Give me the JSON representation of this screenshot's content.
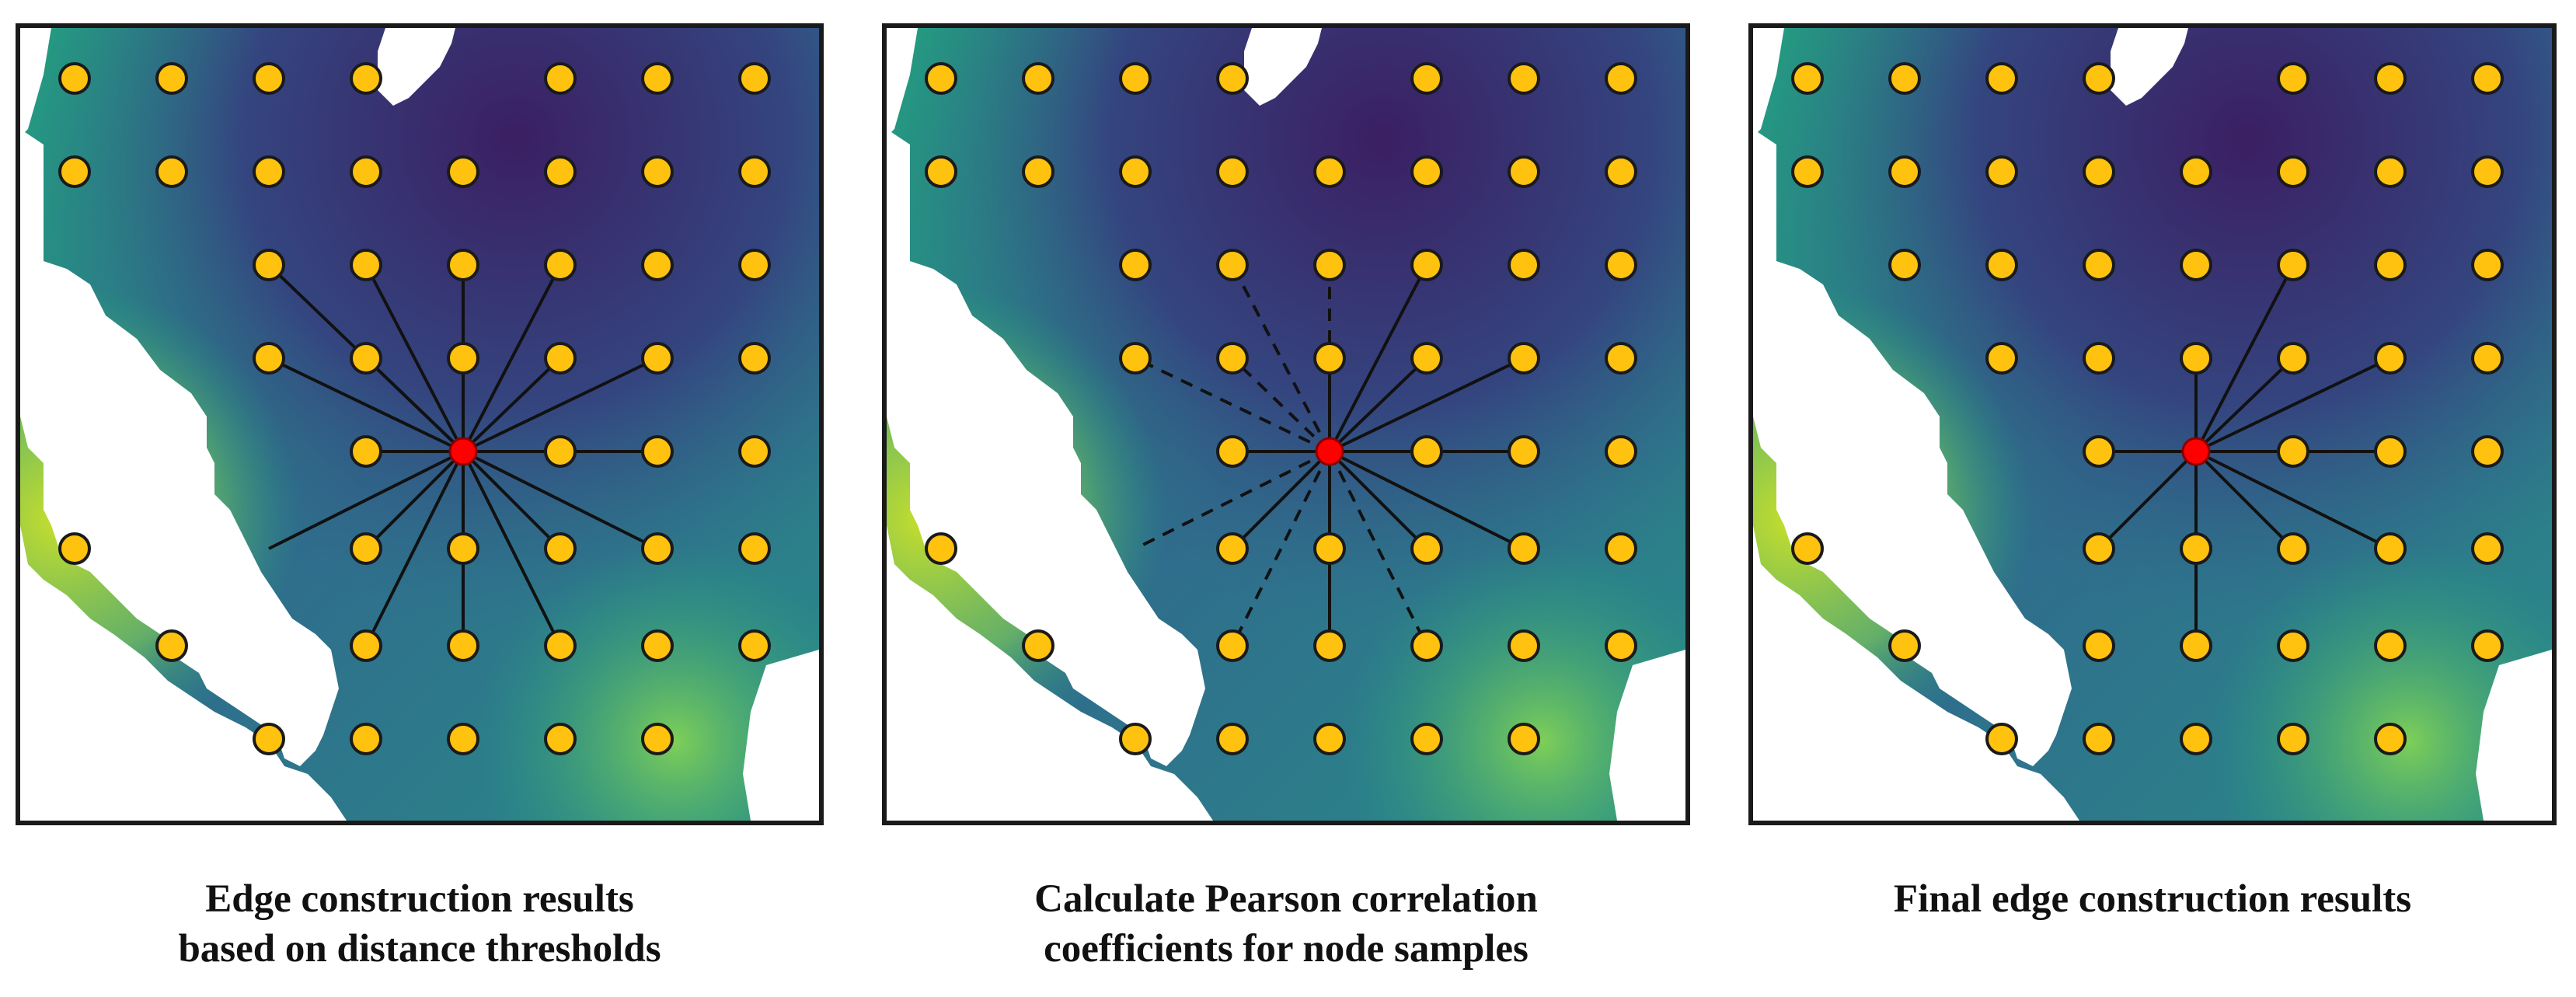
{
  "colors": {
    "node_fill": "#FFC20E",
    "node_stroke": "#1a1a1a",
    "center_node": "#FF0000",
    "edge": "#111111",
    "field_dark": "#3b1f63",
    "field_mid": "#2f6d8c",
    "field_teal": "#23a07f",
    "field_yellow": "#c8df2a",
    "hole": "#ffffff"
  },
  "grid": {
    "rows": 8,
    "cols": 8
  },
  "center": {
    "row": 4,
    "col": 4
  },
  "panels": [
    {
      "id": "distance",
      "caption": [
        "Edge construction results",
        "based on distance thresholds"
      ],
      "solid_edges": [
        [
          2,
          2
        ],
        [
          2,
          3
        ],
        [
          2,
          4
        ],
        [
          2,
          5
        ],
        [
          3,
          2
        ],
        [
          3,
          3
        ],
        [
          3,
          4
        ],
        [
          3,
          5
        ],
        [
          3,
          6
        ],
        [
          4,
          5
        ],
        [
          4,
          6
        ],
        [
          5,
          2
        ],
        [
          5,
          3
        ],
        [
          5,
          4
        ],
        [
          5,
          5
        ],
        [
          5,
          6
        ],
        [
          6,
          3
        ],
        [
          6,
          4
        ],
        [
          6,
          5
        ],
        [
          4,
          3
        ]
      ],
      "dashed_edges": []
    },
    {
      "id": "pearson",
      "caption": [
        "Calculate Pearson correlation",
        "coefficients for node samples"
      ],
      "solid_edges": [
        [
          2,
          5
        ],
        [
          3,
          4
        ],
        [
          3,
          5
        ],
        [
          3,
          6
        ],
        [
          4,
          3
        ],
        [
          4,
          5
        ],
        [
          4,
          6
        ],
        [
          5,
          3
        ],
        [
          5,
          4
        ],
        [
          5,
          5
        ],
        [
          5,
          6
        ],
        [
          6,
          4
        ]
      ],
      "dashed_edges": [
        [
          2,
          3
        ],
        [
          2,
          4
        ],
        [
          3,
          2
        ],
        [
          3,
          3
        ],
        [
          5,
          2
        ],
        [
          6,
          3
        ],
        [
          6,
          5
        ]
      ]
    },
    {
      "id": "final",
      "caption": [
        "Final edge construction results"
      ],
      "solid_edges": [
        [
          2,
          5
        ],
        [
          3,
          4
        ],
        [
          3,
          5
        ],
        [
          3,
          6
        ],
        [
          4,
          3
        ],
        [
          4,
          5
        ],
        [
          4,
          6
        ],
        [
          5,
          3
        ],
        [
          5,
          4
        ],
        [
          5,
          5
        ],
        [
          5,
          6
        ],
        [
          6,
          4
        ]
      ],
      "dashed_edges": []
    }
  ]
}
